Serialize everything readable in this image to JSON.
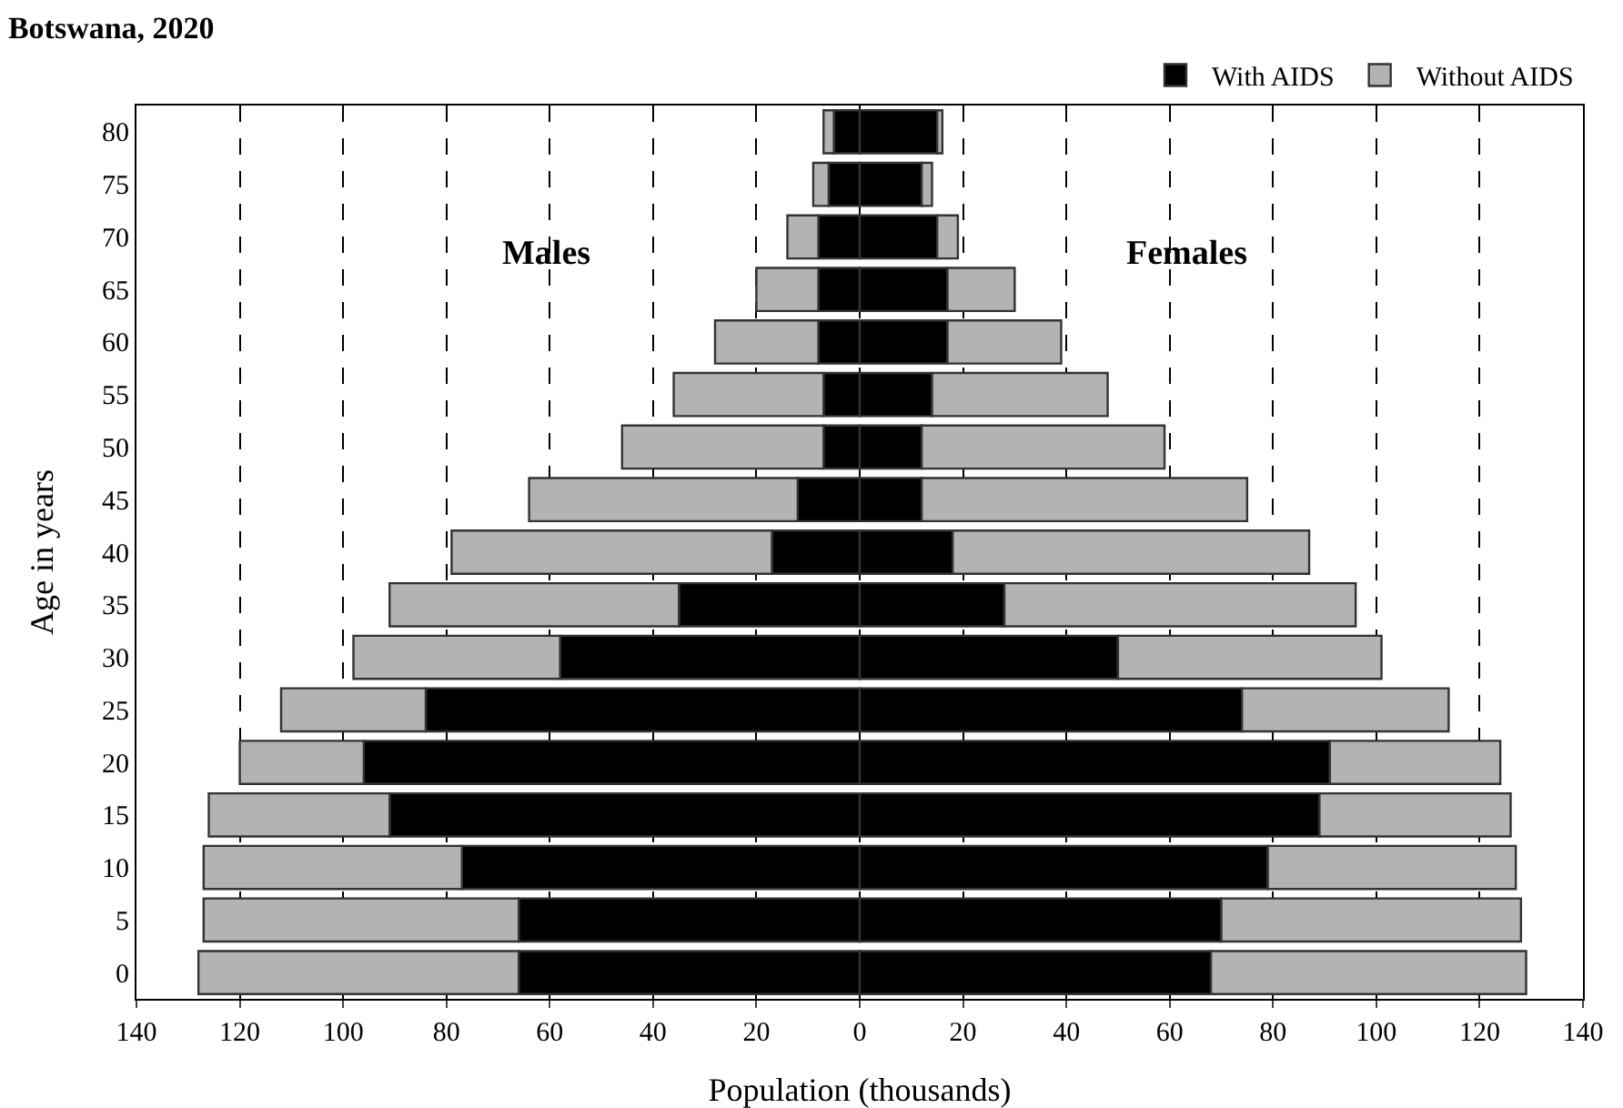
{
  "chart_data": {
    "type": "bar",
    "title": "Botswana, 2020",
    "xlabel": "Population (thousands)",
    "ylabel": "Age in years",
    "orientation": "horizontal",
    "stacked": true,
    "categories": [
      "80",
      "75",
      "70",
      "65",
      "60",
      "55",
      "50",
      "45",
      "40",
      "35",
      "30",
      "25",
      "20",
      "15",
      "10",
      "5",
      "0"
    ],
    "series": [
      {
        "color": "#000000",
        "values": [
          -5,
          -6,
          -8,
          -8,
          -8,
          -7,
          -7,
          -12,
          -17,
          -35,
          -58,
          -84,
          -96,
          -91,
          -77,
          -66,
          -66
        ]
      },
      {
        "color": "#b3b3b3",
        "values": [
          -2,
          -3,
          -6,
          -12,
          -20,
          -29,
          -39,
          -52,
          -62,
          -56,
          -40,
          -28,
          -24,
          -35,
          -50,
          -61,
          -62
        ]
      },
      {
        "name": "With AIDS",
        "color": "#000000",
        "values": [
          15,
          12,
          15,
          17,
          17,
          14,
          12,
          12,
          18,
          28,
          50,
          74,
          91,
          89,
          79,
          70,
          68
        ]
      },
      {
        "name": "Without AIDS",
        "color": "#b3b3b3",
        "values": [
          1,
          2,
          4,
          13,
          22,
          34,
          47,
          63,
          69,
          68,
          51,
          40,
          33,
          37,
          48,
          58,
          61
        ]
      }
    ],
    "xlim": [
      -140,
      140
    ],
    "xticks": [
      {
        "value": -140,
        "label": "140"
      },
      {
        "value": -120,
        "label": "120"
      },
      {
        "value": -100,
        "label": "100"
      },
      {
        "value": -80,
        "label": "80"
      },
      {
        "value": -60,
        "label": "60"
      },
      {
        "value": -40,
        "label": "40"
      },
      {
        "value": -20,
        "label": "20"
      },
      0,
      20,
      40,
      60,
      80,
      100,
      120,
      140
    ],
    "annotations": [
      "Males",
      "Females"
    ],
    "grid": "x",
    "legend": "top right"
  }
}
